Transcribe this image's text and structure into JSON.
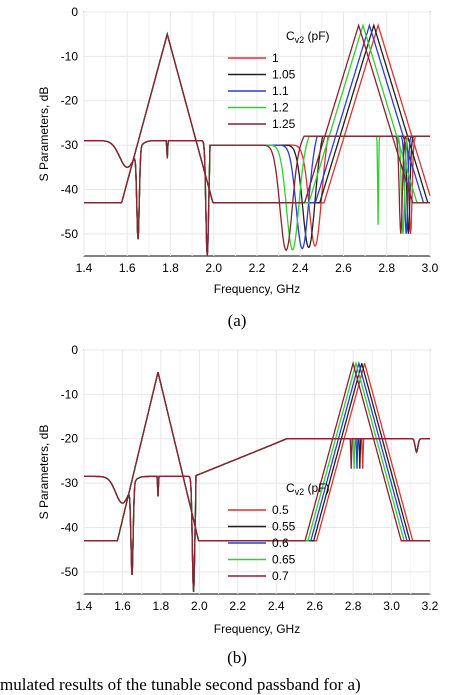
{
  "chart_data": [
    {
      "type": "line",
      "panel_label": "(a)",
      "xlabel": "Frequency, GHz",
      "ylabel": "S Parameters, dB",
      "xlim": [
        1.4,
        3.0
      ],
      "ylim": [
        -55,
        0
      ],
      "xticks": [
        "1.4",
        "1.6",
        "1.8",
        "2.0",
        "2.2",
        "2.4",
        "2.6",
        "2.8",
        "3.0"
      ],
      "yticks": [
        "0",
        "-10",
        "-20",
        "-30",
        "-40",
        "-50"
      ],
      "grid": true,
      "legend_title_main": "C",
      "legend_title_sub": "v2",
      "legend_title_unit": " (pF)",
      "legend_position": "top-center",
      "series": [
        {
          "name": "1",
          "color": "#e03030",
          "shift": 0.0
        },
        {
          "name": "1.05",
          "color": "#202020",
          "shift": -0.02
        },
        {
          "name": "1.1",
          "color": "#2b3bd6",
          "shift": -0.04
        },
        {
          "name": "1.2",
          "color": "#2ed12e",
          "shift": -0.07
        },
        {
          "name": "1.25",
          "color": "#8a2030",
          "shift": -0.09
        }
      ],
      "first_band": {
        "s11_notches": [
          [
            1.65,
            -49
          ],
          [
            1.785,
            -27
          ],
          [
            1.97,
            -55
          ]
        ],
        "s21_points": [
          [
            1.4,
            -29
          ],
          [
            1.5,
            -29.5
          ],
          [
            1.6,
            -36
          ],
          [
            1.65,
            -49
          ],
          [
            1.7,
            -20
          ],
          [
            1.74,
            -3
          ],
          [
            1.76,
            -1
          ],
          [
            1.79,
            -3
          ],
          [
            1.82,
            -1
          ],
          [
            1.85,
            -5
          ],
          [
            1.9,
            -20
          ],
          [
            1.95,
            -48
          ],
          [
            1.97,
            -55
          ],
          [
            2.0,
            -38
          ],
          [
            2.1,
            -32
          ],
          [
            2.2,
            -30.5
          ],
          [
            2.3,
            -31
          ],
          [
            2.35,
            -33
          ]
        ]
      },
      "second_band": {
        "notch_depth": -55,
        "notch_base_freq": 2.52,
        "passband_center": 2.76,
        "reject_base": 2.9
      }
    },
    {
      "type": "line",
      "panel_label": "(b)",
      "xlabel": "Frequency, GHz",
      "ylabel": "S Parameters, dB",
      "xlim": [
        1.4,
        3.2
      ],
      "ylim": [
        -55,
        0
      ],
      "xticks": [
        "1.4",
        "1.6",
        "1.8",
        "2.0",
        "2.2",
        "2.4",
        "2.6",
        "2.8",
        "3.0",
        "3.2"
      ],
      "yticks": [
        "0",
        "-10",
        "-20",
        "-30",
        "-40",
        "-50"
      ],
      "grid": true,
      "legend_title_main": "C",
      "legend_title_sub": "v2",
      "legend_title_unit": " (pF)",
      "legend_position": "lower-right",
      "series": [
        {
          "name": "0.5",
          "color": "#e03030",
          "shift": 0.0
        },
        {
          "name": "0.55",
          "color": "#202020",
          "shift": -0.015
        },
        {
          "name": "0.6",
          "color": "#2b3bd6",
          "shift": -0.03
        },
        {
          "name": "0.65",
          "color": "#2ed12e",
          "shift": -0.045
        },
        {
          "name": "0.7",
          "color": "#8a2030",
          "shift": -0.06
        }
      ]
    }
  ],
  "caption": "mulated results of the tunable second passband for a)"
}
